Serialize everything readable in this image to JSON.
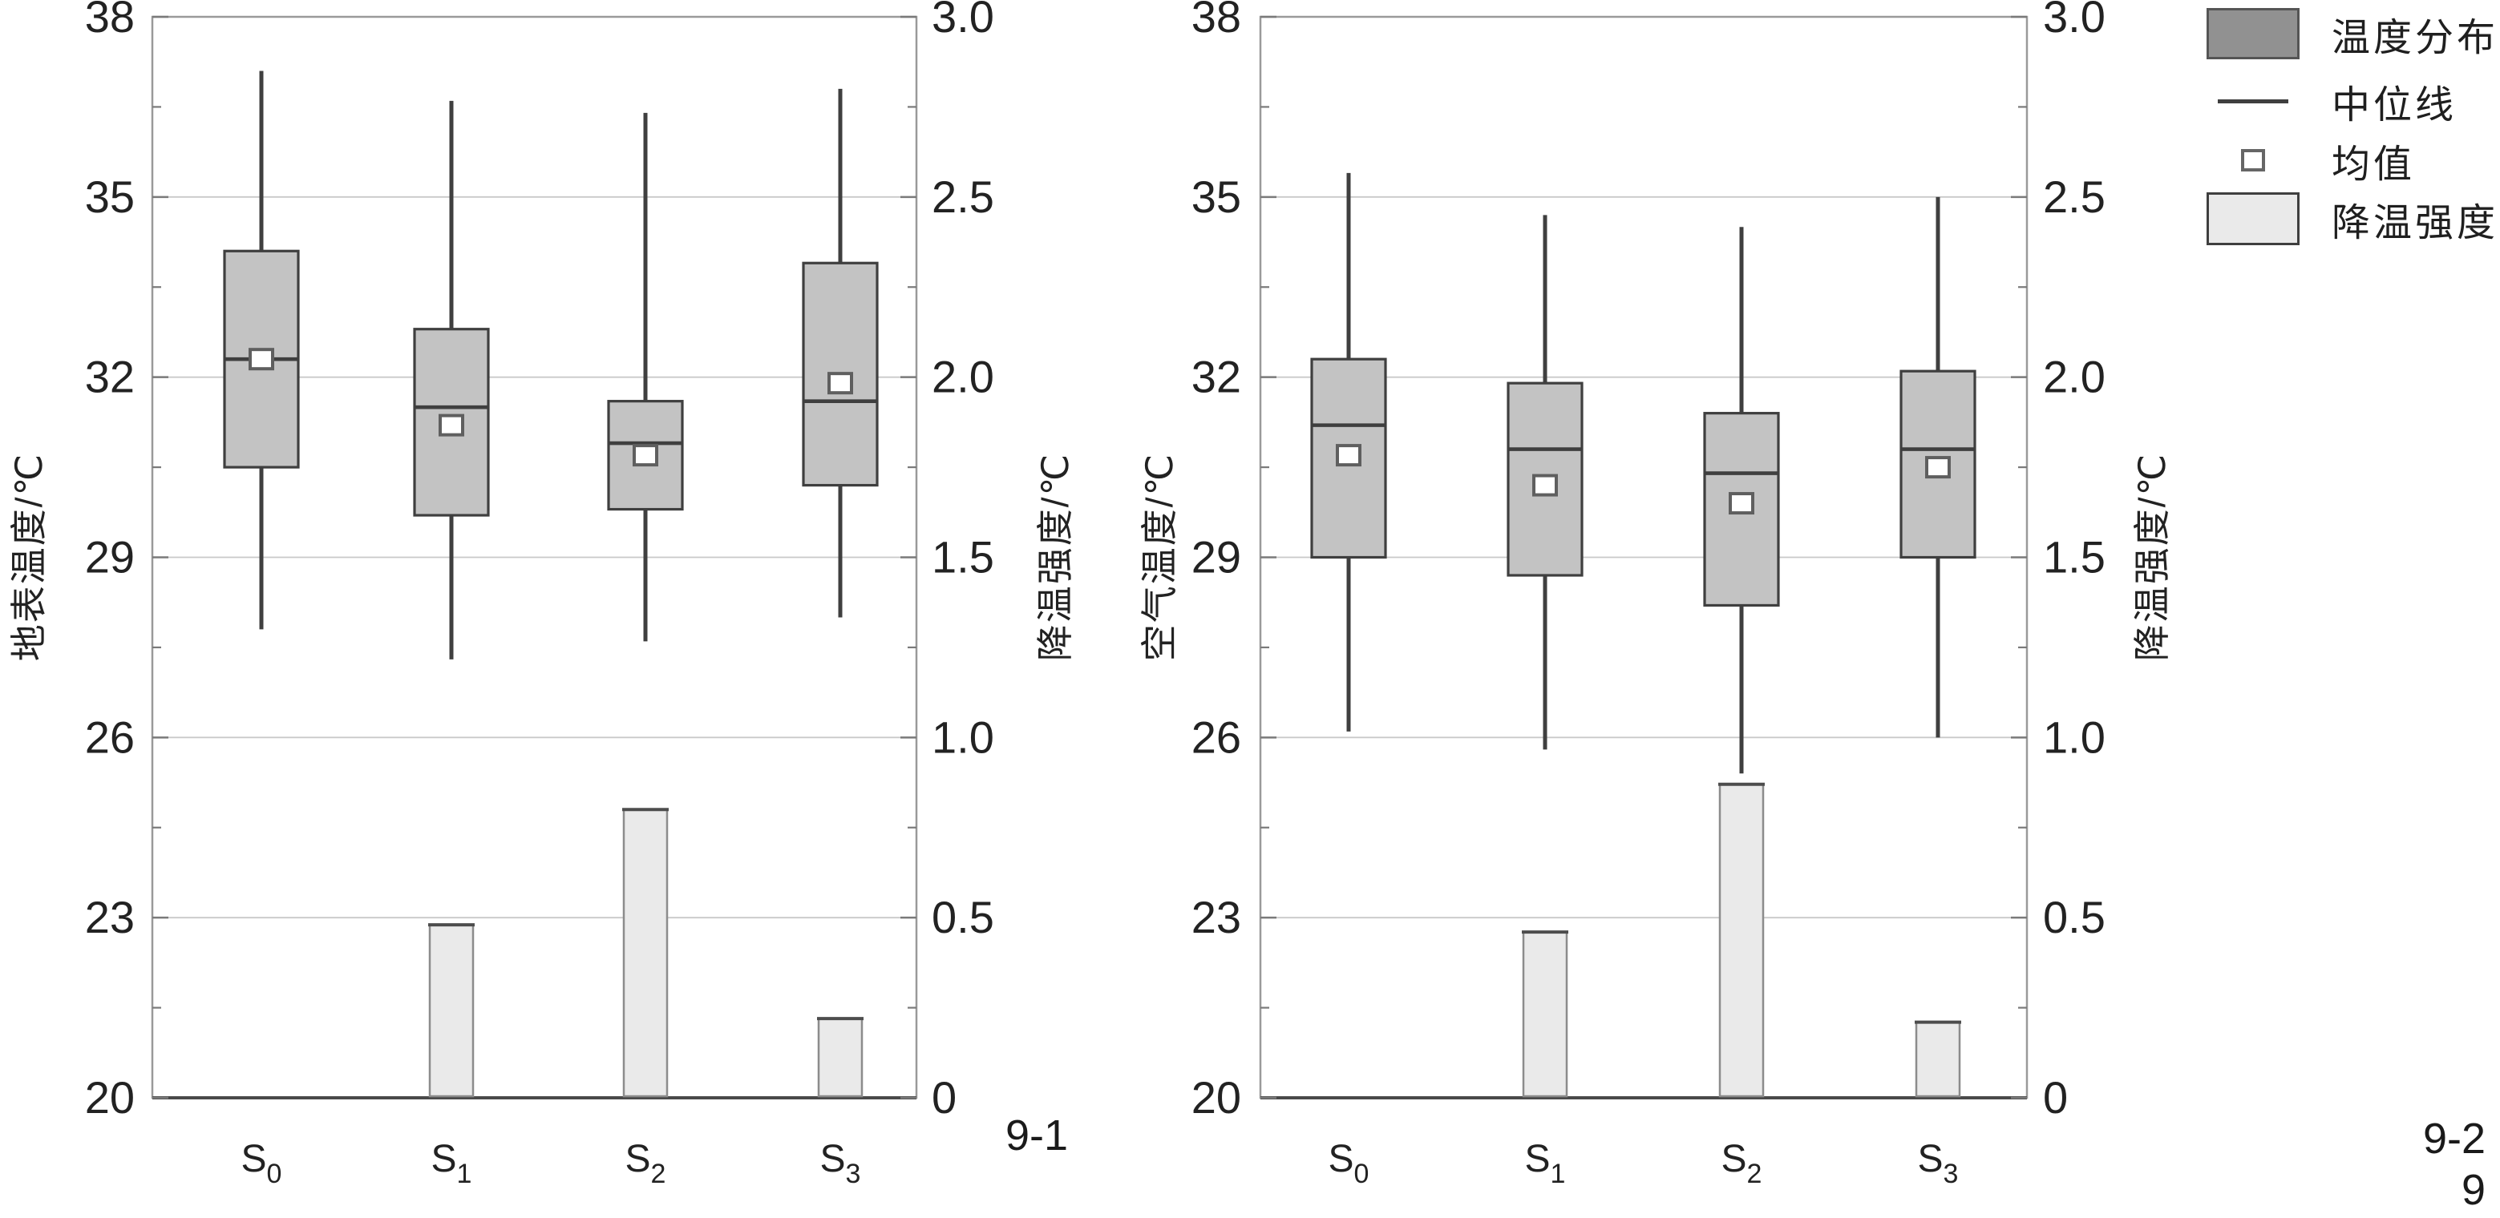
{
  "figure": {
    "sub_label_left": "9-1",
    "sub_label_right": "9-2",
    "page_number": "9"
  },
  "legend": {
    "items": [
      {
        "label": "温度分布",
        "swatch": "dark-box-icon"
      },
      {
        "label": "中位线",
        "swatch": "median-line-icon"
      },
      {
        "label": "均值",
        "swatch": "mean-square-icon"
      },
      {
        "label": "降温强度",
        "swatch": "light-box-icon"
      }
    ]
  },
  "colors": {
    "box_fill": "#c3c3c3",
    "box_stroke": "#3f3f3f",
    "bar_fill": "#eaeaea",
    "bar_stroke": "#8c8c8c",
    "bar_top": "#4d4d4d",
    "mean_fill": "#ffffff",
    "mean_stroke": "#5f5f5f",
    "grid": "#c9c9c9",
    "frame": "#9a9a9a",
    "baseline": "#4a4a4a",
    "tick": "#7a7a7a",
    "text": "#222222",
    "legend_dark": "#919191",
    "legend_light": "#eaeaea"
  },
  "chart_data": [
    {
      "type": "box+bar",
      "title": "",
      "categories": [
        "S0",
        "S1",
        "S2",
        "S3"
      ],
      "ylabel_left": "地表温度/℃",
      "ylabel_right": "降温强度/℃",
      "ylim_left": [
        20,
        38
      ],
      "ylim_right": [
        0,
        3.0
      ],
      "yticks_left": [
        20,
        23,
        26,
        29,
        32,
        35,
        38
      ],
      "ytick_labels_left": [
        "20",
        "23",
        "26",
        "29",
        "32",
        "35",
        "38"
      ],
      "ytick_labels_right": [
        "0",
        "0.5",
        "1.0",
        "1.5",
        "2.0",
        "2.5",
        "3.0"
      ],
      "grid": "on",
      "boxes": [
        {
          "category": "S0",
          "whisker_low": 27.8,
          "q1": 30.5,
          "median": 32.3,
          "mean": 32.3,
          "q3": 34.1,
          "whisker_high": 37.1
        },
        {
          "category": "S1",
          "whisker_low": 27.3,
          "q1": 29.7,
          "median": 31.5,
          "mean": 31.2,
          "q3": 32.8,
          "whisker_high": 36.6
        },
        {
          "category": "S2",
          "whisker_low": 27.6,
          "q1": 29.8,
          "median": 30.9,
          "mean": 30.7,
          "q3": 31.6,
          "whisker_high": 36.4
        },
        {
          "category": "S3",
          "whisker_low": 28.0,
          "q1": 30.2,
          "median": 31.6,
          "mean": 31.9,
          "q3": 33.9,
          "whisker_high": 36.8
        }
      ],
      "bars_right_axis": [
        {
          "category": "S0",
          "value": 0
        },
        {
          "category": "S1",
          "value": 0.48
        },
        {
          "category": "S2",
          "value": 0.8
        },
        {
          "category": "S3",
          "value": 0.22
        }
      ]
    },
    {
      "type": "box+bar",
      "title": "",
      "categories": [
        "S0",
        "S1",
        "S2",
        "S3"
      ],
      "ylabel_left": "空气温度/℃",
      "ylabel_right": "降温强度/℃",
      "ylim_left": [
        20,
        38
      ],
      "ylim_right": [
        0,
        3.0
      ],
      "yticks_left": [
        20,
        23,
        26,
        29,
        32,
        35,
        38
      ],
      "ytick_labels_left": [
        "20",
        "23",
        "26",
        "29",
        "32",
        "35",
        "38"
      ],
      "ytick_labels_right": [
        "0",
        "0.5",
        "1.0",
        "1.5",
        "2.0",
        "2.5",
        "3.0"
      ],
      "grid": "on",
      "boxes": [
        {
          "category": "S0",
          "whisker_low": 26.1,
          "q1": 29.0,
          "median": 31.2,
          "mean": 30.7,
          "q3": 32.3,
          "whisker_high": 35.4
        },
        {
          "category": "S1",
          "whisker_low": 25.8,
          "q1": 28.7,
          "median": 30.8,
          "mean": 30.2,
          "q3": 31.9,
          "whisker_high": 34.7
        },
        {
          "category": "S2",
          "whisker_low": 25.4,
          "q1": 28.2,
          "median": 30.4,
          "mean": 29.9,
          "q3": 31.4,
          "whisker_high": 34.5
        },
        {
          "category": "S3",
          "whisker_low": 26.0,
          "q1": 29.0,
          "median": 30.8,
          "mean": 30.5,
          "q3": 32.1,
          "whisker_high": 35.0
        }
      ],
      "bars_right_axis": [
        {
          "category": "S0",
          "value": 0
        },
        {
          "category": "S1",
          "value": 0.46
        },
        {
          "category": "S2",
          "value": 0.87
        },
        {
          "category": "S3",
          "value": 0.21
        }
      ]
    }
  ]
}
